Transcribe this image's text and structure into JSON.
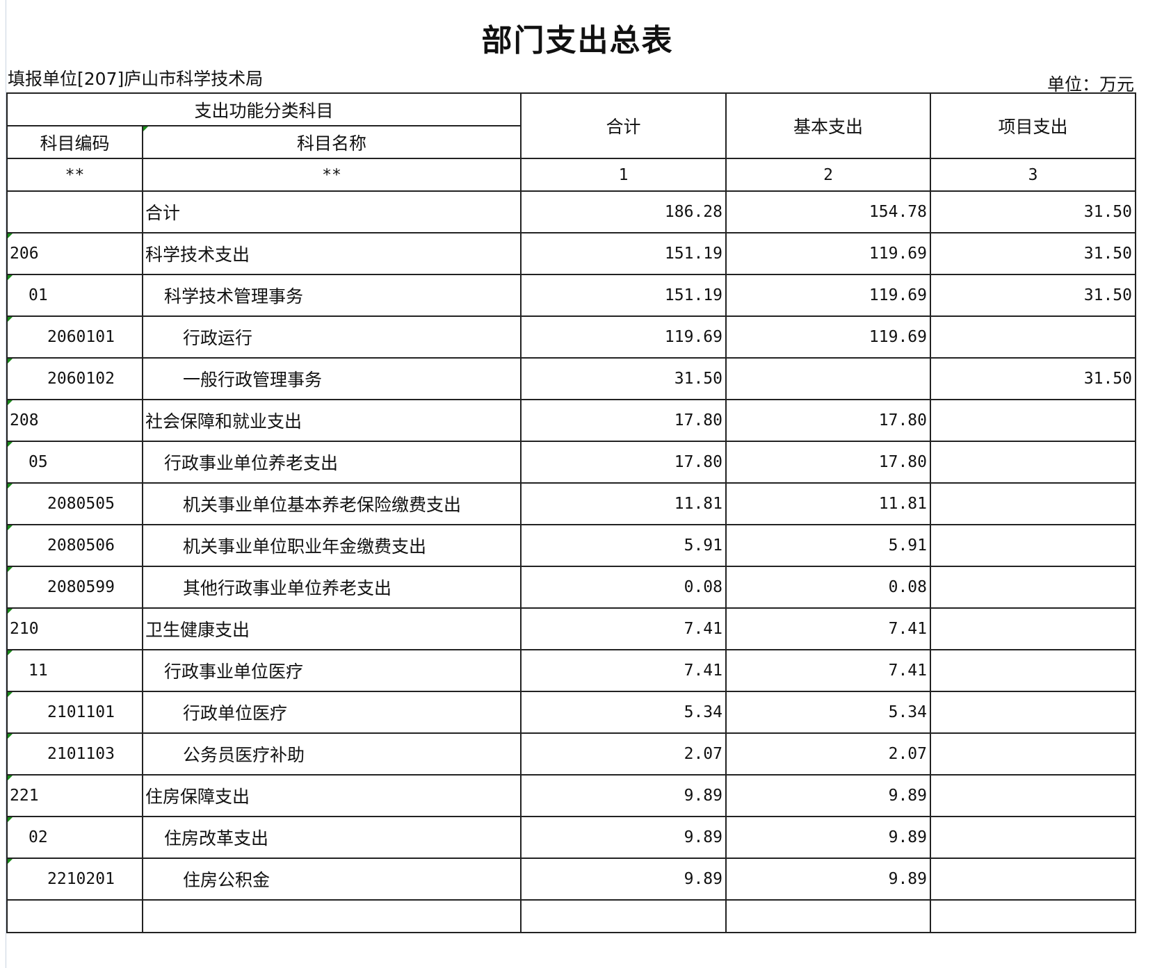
{
  "title": "部门支出总表",
  "reporting_unit": "填报单位[207]庐山市科学技术局",
  "unit": "单位：万元",
  "header": {
    "group": "支出功能分类科目",
    "code": "科目编码",
    "name": "科目名称",
    "total": "合计",
    "basic": "基本支出",
    "project": "项目支出",
    "code_idx": "**",
    "name_idx": "**",
    "total_idx": "1",
    "basic_idx": "2",
    "project_idx": "3"
  },
  "rows": [
    {
      "code": "",
      "name": "合计",
      "level": 0,
      "total": "186.28",
      "basic": "154.78",
      "project": "31.50"
    },
    {
      "code": "206",
      "name": "科学技术支出",
      "level": 1,
      "total": "151.19",
      "basic": "119.69",
      "project": "31.50"
    },
    {
      "code": "01",
      "name": "科学技术管理事务",
      "level": 2,
      "total": "151.19",
      "basic": "119.69",
      "project": "31.50"
    },
    {
      "code": "2060101",
      "name": "行政运行",
      "level": 3,
      "total": "119.69",
      "basic": "119.69",
      "project": ""
    },
    {
      "code": "2060102",
      "name": "一般行政管理事务",
      "level": 3,
      "total": "31.50",
      "basic": "",
      "project": "31.50"
    },
    {
      "code": "208",
      "name": "社会保障和就业支出",
      "level": 1,
      "total": "17.80",
      "basic": "17.80",
      "project": ""
    },
    {
      "code": "05",
      "name": "行政事业单位养老支出",
      "level": 2,
      "total": "17.80",
      "basic": "17.80",
      "project": ""
    },
    {
      "code": "2080505",
      "name": "机关事业单位基本养老保险缴费支出",
      "level": 3,
      "total": "11.81",
      "basic": "11.81",
      "project": ""
    },
    {
      "code": "2080506",
      "name": "机关事业单位职业年金缴费支出",
      "level": 3,
      "total": "5.91",
      "basic": "5.91",
      "project": ""
    },
    {
      "code": "2080599",
      "name": "其他行政事业单位养老支出",
      "level": 3,
      "total": "0.08",
      "basic": "0.08",
      "project": ""
    },
    {
      "code": "210",
      "name": "卫生健康支出",
      "level": 1,
      "total": "7.41",
      "basic": "7.41",
      "project": ""
    },
    {
      "code": "11",
      "name": "行政事业单位医疗",
      "level": 2,
      "total": "7.41",
      "basic": "7.41",
      "project": ""
    },
    {
      "code": "2101101",
      "name": "行政单位医疗",
      "level": 3,
      "total": "5.34",
      "basic": "5.34",
      "project": ""
    },
    {
      "code": "2101103",
      "name": "公务员医疗补助",
      "level": 3,
      "total": "2.07",
      "basic": "2.07",
      "project": ""
    },
    {
      "code": "221",
      "name": "住房保障支出",
      "level": 1,
      "total": "9.89",
      "basic": "9.89",
      "project": ""
    },
    {
      "code": "02",
      "name": "住房改革支出",
      "level": 2,
      "total": "9.89",
      "basic": "9.89",
      "project": ""
    },
    {
      "code": "2210201",
      "name": "住房公积金",
      "level": 3,
      "total": "9.89",
      "basic": "9.89",
      "project": ""
    },
    {
      "code": "",
      "name": "",
      "level": 0,
      "total": "",
      "basic": "",
      "project": ""
    }
  ],
  "colors": {
    "border": "#222222",
    "text_indicator": "#1a8a1a"
  }
}
